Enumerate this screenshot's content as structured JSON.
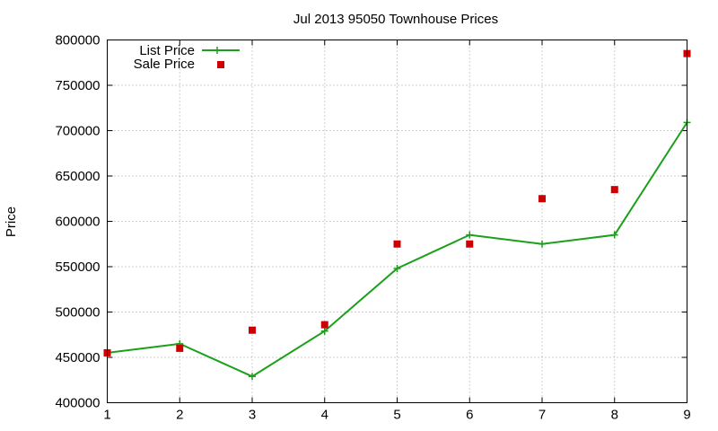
{
  "chart_data": {
    "type": "line",
    "title": "Jul 2013 95050 Townhouse Prices",
    "xlabel": "",
    "ylabel": "Price",
    "x": [
      1,
      2,
      3,
      4,
      5,
      6,
      7,
      8,
      9
    ],
    "xlim": [
      1,
      9
    ],
    "ylim": [
      400000,
      800000
    ],
    "xticks": [
      "1",
      "2",
      "3",
      "4",
      "5",
      "6",
      "7",
      "8",
      "9"
    ],
    "yticks": [
      "400000",
      "450000",
      "500000",
      "550000",
      "600000",
      "650000",
      "700000",
      "750000",
      "800000"
    ],
    "grid": true,
    "legend_position": "top-left",
    "series": [
      {
        "name": "List Price",
        "style": "line-with-plus-markers",
        "color": "#1aa01a",
        "values": [
          455000,
          465000,
          429000,
          479000,
          548000,
          585000,
          575000,
          585000,
          709000
        ]
      },
      {
        "name": "Sale Price",
        "style": "square-markers",
        "color": "#cc0000",
        "values": [
          455000,
          460000,
          480000,
          486000,
          575000,
          575000,
          625000,
          635000,
          785000
        ]
      }
    ]
  }
}
